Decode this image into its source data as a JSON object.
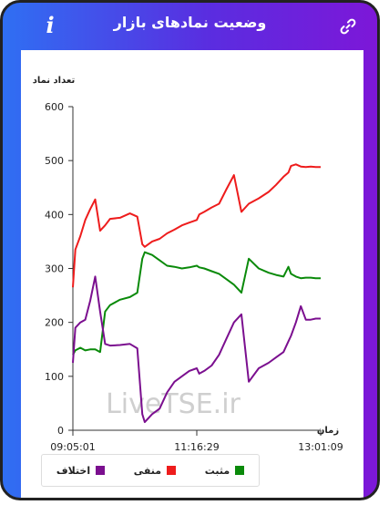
{
  "header": {
    "title": "وضعیت نمادهای بازار",
    "info_label": "i",
    "link_icon": "link-icon"
  },
  "watermark": "LiveTSE.ir",
  "chart_data": {
    "type": "line",
    "title": "",
    "ylabel": "تعداد نماد",
    "xlabel": "زمان",
    "ylim": [
      0,
      600
    ],
    "yticks": [
      0,
      100,
      200,
      300,
      400,
      500,
      600
    ],
    "xlim": [
      0,
      1
    ],
    "xticks": [
      {
        "pos": 0.0,
        "label": "09:05:01"
      },
      {
        "pos": 0.5,
        "label": "11:16:29"
      },
      {
        "pos": 1.0,
        "label": "13:01:09"
      }
    ],
    "x": [
      0,
      0.01,
      0.03,
      0.05,
      0.07,
      0.09,
      0.11,
      0.13,
      0.15,
      0.19,
      0.23,
      0.26,
      0.28,
      0.29,
      0.32,
      0.35,
      0.38,
      0.41,
      0.44,
      0.47,
      0.5,
      0.51,
      0.53,
      0.56,
      0.59,
      0.62,
      0.65,
      0.68,
      0.71,
      0.75,
      0.79,
      0.82,
      0.85,
      0.87,
      0.88,
      0.9,
      0.92,
      0.94,
      0.96,
      0.98,
      1.0
    ],
    "series": [
      {
        "name": "منفی",
        "color": "#ee1c1c",
        "values": [
          265,
          335,
          360,
          390,
          410,
          428,
          370,
          380,
          392,
          394,
          402,
          396,
          345,
          340,
          350,
          355,
          365,
          372,
          380,
          385,
          390,
          400,
          405,
          413,
          420,
          447,
          473,
          405,
          420,
          430,
          442,
          455,
          470,
          478,
          490,
          493,
          489,
          488,
          489,
          488,
          488
        ]
      },
      {
        "name": "مثبت",
        "color": "#0a8a0a",
        "values": [
          140,
          148,
          153,
          148,
          150,
          150,
          145,
          220,
          232,
          242,
          247,
          255,
          318,
          330,
          325,
          315,
          305,
          303,
          300,
          302,
          305,
          302,
          300,
          295,
          290,
          280,
          270,
          255,
          318,
          300,
          292,
          288,
          285,
          303,
          290,
          285,
          282,
          283,
          283,
          282,
          282
        ]
      },
      {
        "name": "اختلاف",
        "color": "#7b0f8f",
        "values": [
          125,
          190,
          200,
          205,
          240,
          285,
          220,
          160,
          157,
          158,
          160,
          152,
          30,
          15,
          30,
          40,
          70,
          90,
          100,
          110,
          115,
          105,
          110,
          120,
          140,
          170,
          200,
          215,
          90,
          115,
          125,
          135,
          145,
          165,
          175,
          200,
          230,
          205,
          205,
          207,
          207
        ]
      }
    ],
    "legend_position": "bottom"
  }
}
